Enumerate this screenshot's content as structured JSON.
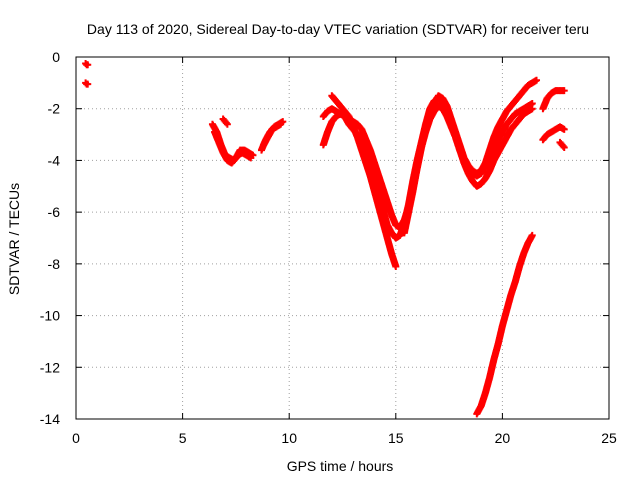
{
  "chart_data": {
    "type": "scatter",
    "title": "Day 113 of 2020, Sidereal Day-to-day VTEC variation (SDTVAR) for receiver teru",
    "xlabel": "GPS time / hours",
    "ylabel": "SDTVAR / TECUs",
    "xlim": [
      0,
      25
    ],
    "ylim": [
      -14,
      0
    ],
    "xticks": [
      0,
      5,
      10,
      15,
      20,
      25
    ],
    "yticks": [
      0,
      -2,
      -4,
      -6,
      -8,
      -10,
      -12,
      -14
    ],
    "grid": true,
    "marker": "+",
    "color": "#ff0000",
    "segments": [
      {
        "x": [
          0.45,
          0.5,
          0.55
        ],
        "y": [
          -0.25,
          -0.3,
          -0.3
        ]
      },
      {
        "x": [
          0.45,
          0.5,
          0.55
        ],
        "y": [
          -1.0,
          -1.05,
          -1.05
        ]
      },
      {
        "x": [
          6.4,
          6.6,
          6.8,
          7.0,
          7.2,
          7.4,
          7.6,
          7.8,
          8.0,
          8.2
        ],
        "y": [
          -2.6,
          -2.9,
          -3.4,
          -3.8,
          -3.9,
          -4.0,
          -3.8,
          -3.7,
          -3.8,
          -3.9
        ]
      },
      {
        "x": [
          6.5,
          6.7,
          6.9,
          7.1,
          7.3,
          7.5,
          7.7,
          7.9,
          8.1,
          8.3
        ],
        "y": [
          -2.9,
          -3.3,
          -3.7,
          -4.0,
          -4.1,
          -3.9,
          -3.6,
          -3.6,
          -3.7,
          -3.8
        ]
      },
      {
        "x": [
          6.9,
          7.0,
          7.1
        ],
        "y": [
          -2.4,
          -2.5,
          -2.6
        ]
      },
      {
        "x": [
          8.7,
          8.9,
          9.1,
          9.3,
          9.5,
          9.7
        ],
        "y": [
          -3.6,
          -3.2,
          -2.9,
          -2.7,
          -2.6,
          -2.5
        ]
      },
      {
        "x": [
          8.8,
          9.0,
          9.2,
          9.4,
          9.6
        ],
        "y": [
          -3.4,
          -3.1,
          -2.8,
          -2.7,
          -2.6
        ]
      },
      {
        "x": [
          11.6,
          11.8,
          12.0,
          12.2,
          12.4,
          12.6,
          12.8,
          13.0,
          13.2,
          13.4,
          13.6,
          13.8,
          14.0,
          14.2,
          14.4,
          14.6,
          14.8,
          15.0,
          15.2,
          15.4,
          15.6,
          15.8,
          16.0,
          16.2,
          16.4,
          16.6,
          16.8,
          17.0,
          17.2,
          17.4,
          17.6,
          17.8,
          18.0,
          18.2,
          18.4,
          18.6,
          18.8,
          19.0,
          19.2,
          19.4,
          19.6,
          19.8,
          20.0,
          20.2,
          20.4,
          20.6,
          20.8,
          21.0,
          21.2,
          21.4
        ],
        "y": [
          -2.3,
          -2.1,
          -2.0,
          -2.1,
          -2.2,
          -2.3,
          -2.4,
          -2.5,
          -2.6,
          -2.8,
          -3.2,
          -3.6,
          -4.1,
          -4.6,
          -5.1,
          -5.6,
          -6.1,
          -6.5,
          -6.6,
          -6.3,
          -5.8,
          -5.1,
          -4.3,
          -3.5,
          -2.9,
          -2.4,
          -2.1,
          -1.9,
          -2.0,
          -2.3,
          -2.7,
          -3.1,
          -3.6,
          -4.0,
          -4.3,
          -4.5,
          -4.6,
          -4.5,
          -4.2,
          -3.9,
          -3.6,
          -3.2,
          -2.9,
          -2.6,
          -2.4,
          -2.2,
          -2.1,
          -2.0,
          -1.9,
          -1.8
        ]
      },
      {
        "x": [
          11.6,
          11.8,
          12.0,
          12.2,
          12.4,
          12.6,
          12.8,
          13.0,
          13.2,
          13.4,
          13.6,
          13.8,
          14.0,
          14.2,
          14.4,
          14.6,
          14.8,
          15.0,
          15.2,
          15.4,
          15.6,
          15.8,
          16.0,
          16.2,
          16.4,
          16.6,
          16.8,
          17.0,
          17.2,
          17.4,
          17.6,
          17.8,
          18.0,
          18.2,
          18.4,
          18.6,
          18.8,
          19.0,
          19.2,
          19.4,
          19.6,
          19.8,
          20.0,
          20.2,
          20.4,
          20.6,
          20.8,
          21.0,
          21.2,
          21.4
        ],
        "y": [
          -3.4,
          -2.9,
          -2.5,
          -2.3,
          -2.2,
          -2.3,
          -2.6,
          -2.8,
          -3.0,
          -3.2,
          -3.5,
          -3.9,
          -4.5,
          -5.2,
          -5.9,
          -6.5,
          -6.8,
          -7.0,
          -6.9,
          -6.4,
          -5.7,
          -4.8,
          -4.0,
          -3.3,
          -2.6,
          -2.0,
          -1.7,
          -1.6,
          -1.8,
          -2.2,
          -2.6,
          -3.1,
          -3.6,
          -4.1,
          -4.5,
          -4.8,
          -5.0,
          -4.9,
          -4.7,
          -4.4,
          -4.0,
          -3.7,
          -3.4,
          -3.1,
          -2.8,
          -2.6,
          -2.4,
          -2.2,
          -2.1,
          -2.0
        ]
      },
      {
        "x": [
          12.0,
          12.2,
          12.4,
          12.6,
          12.8,
          13.0,
          13.2,
          13.4,
          13.6,
          13.8,
          14.0,
          14.2,
          14.4,
          14.6,
          14.8,
          15.0
        ],
        "y": [
          -1.5,
          -1.7,
          -1.9,
          -2.1,
          -2.3,
          -2.7,
          -3.1,
          -3.6,
          -4.1,
          -4.6,
          -5.2,
          -5.8,
          -6.4,
          -7.0,
          -7.6,
          -8.1
        ]
      },
      {
        "x": [
          15.4,
          15.6,
          15.8,
          16.0,
          16.2,
          16.4,
          16.6,
          16.8,
          17.0,
          17.2,
          17.4,
          17.6,
          17.8,
          18.0,
          18.2,
          18.4,
          18.6,
          18.8,
          19.0,
          19.2,
          19.4,
          19.6,
          19.8,
          20.0,
          20.2,
          20.4,
          20.6,
          20.8,
          21.0,
          21.2,
          21.4,
          21.6
        ],
        "y": [
          -6.8,
          -6.0,
          -5.2,
          -4.3,
          -3.5,
          -2.8,
          -2.2,
          -1.8,
          -1.5,
          -1.6,
          -1.9,
          -2.4,
          -2.9,
          -3.4,
          -3.9,
          -4.2,
          -4.4,
          -4.5,
          -4.4,
          -4.1,
          -3.6,
          -3.1,
          -2.7,
          -2.4,
          -2.1,
          -1.9,
          -1.7,
          -1.5,
          -1.3,
          -1.1,
          -1.0,
          -0.9
        ]
      },
      {
        "x": [
          18.8,
          19.0,
          19.2,
          19.4,
          19.6,
          19.8,
          20.0,
          20.2,
          20.4,
          20.6,
          20.8,
          21.0,
          21.2,
          21.4
        ],
        "y": [
          -13.8,
          -13.5,
          -13.0,
          -12.4,
          -11.7,
          -11.1,
          -10.4,
          -9.8,
          -9.2,
          -8.7,
          -8.1,
          -7.6,
          -7.2,
          -6.9
        ]
      },
      {
        "x": [
          21.9,
          22.1,
          22.3,
          22.5,
          22.7,
          22.9
        ],
        "y": [
          -2.0,
          -1.6,
          -1.4,
          -1.3,
          -1.3,
          -1.3
        ]
      },
      {
        "x": [
          21.9,
          22.1,
          22.3,
          22.5,
          22.7,
          22.9
        ],
        "y": [
          -3.2,
          -3.0,
          -2.9,
          -2.8,
          -2.7,
          -2.8
        ]
      },
      {
        "x": [
          22.7,
          22.8,
          22.9
        ],
        "y": [
          -3.3,
          -3.4,
          -3.5
        ]
      }
    ]
  }
}
